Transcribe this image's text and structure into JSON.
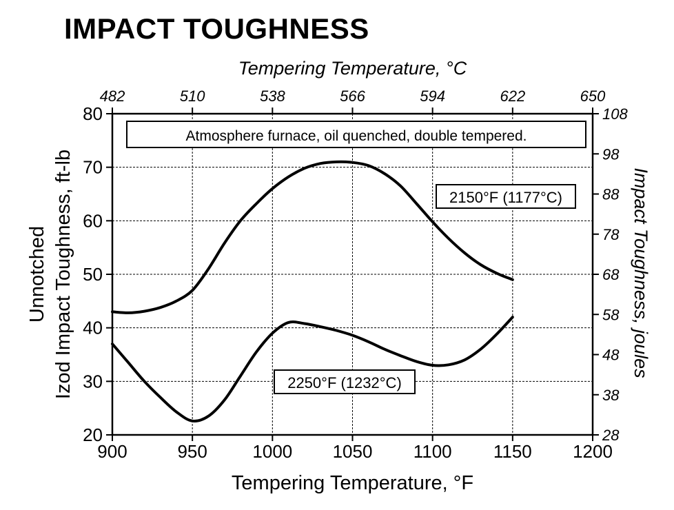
{
  "title": "IMPACT TOUGHNESS",
  "chart_data": {
    "type": "line",
    "title": "IMPACT TOUGHNESS",
    "annotation": "Atmosphere furnace, oil quenched, double tempered.",
    "xlabel": "Tempering Temperature, °F",
    "ylabel_lines": [
      "Unnotched",
      "Izod Impact Toughness, ft-lb"
    ],
    "x2label": "Tempering Temperature, °C",
    "y2label": "Impact Toughness, joules",
    "xlim": [
      900,
      1200
    ],
    "ylim": [
      20,
      80
    ],
    "y2lim": [
      28,
      108
    ],
    "grid": true,
    "x_ticks": [
      "900",
      "950",
      "1000",
      "1050",
      "1100",
      "1150",
      "1200"
    ],
    "y_ticks": [
      "20",
      "30",
      "40",
      "50",
      "60",
      "70",
      "80"
    ],
    "x2_ticks": [
      "482",
      "510",
      "538",
      "566",
      "594",
      "622",
      "650"
    ],
    "y2_ticks": [
      "28",
      "38",
      "48",
      "58",
      "68",
      "78",
      "88",
      "98",
      "108"
    ],
    "series": [
      {
        "name": "2150°F (1177°C)",
        "x": [
          900,
          910,
          920,
          930,
          940,
          950,
          960,
          970,
          980,
          990,
          1000,
          1010,
          1020,
          1030,
          1040,
          1050,
          1060,
          1070,
          1080,
          1090,
          1100,
          1110,
          1120,
          1130,
          1140,
          1150
        ],
        "y": [
          43,
          42.8,
          43.1,
          43.8,
          45,
          47,
          51,
          55.8,
          60,
          63.2,
          66,
          68.2,
          69.8,
          70.7,
          71,
          70.9,
          70.3,
          68.8,
          66.5,
          63.2,
          59.8,
          56.7,
          54,
          51.8,
          50.2,
          49
        ]
      },
      {
        "name": "2250°F (1232°C)",
        "x": [
          900,
          910,
          920,
          930,
          940,
          950,
          960,
          970,
          980,
          990,
          1000,
          1010,
          1020,
          1030,
          1040,
          1050,
          1060,
          1070,
          1080,
          1090,
          1100,
          1110,
          1120,
          1130,
          1140,
          1150
        ],
        "y": [
          37,
          33.5,
          30,
          27,
          24.3,
          22.6,
          23.5,
          26.5,
          31,
          35.5,
          39,
          41,
          40.8,
          40.2,
          39.5,
          38.6,
          37.4,
          36,
          34.8,
          33.7,
          33,
          33.1,
          34,
          36,
          38.8,
          42
        ]
      }
    ]
  }
}
